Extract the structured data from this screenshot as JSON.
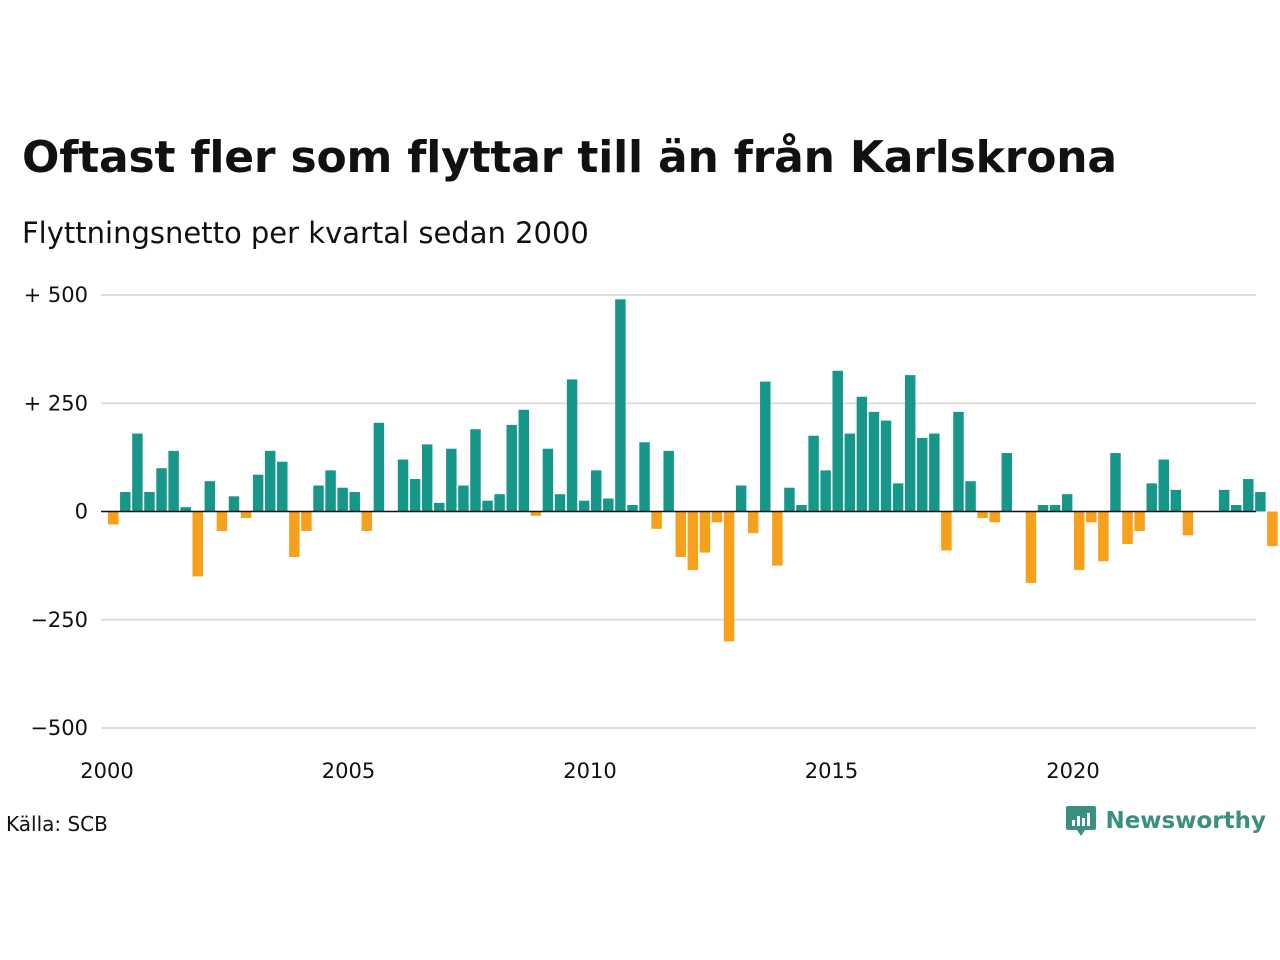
{
  "title": "Oftast fler som flyttar till än från Karlskrona",
  "subtitle": "Flyttningsnetto per kvartal sedan 2000",
  "source": "Källa: SCB",
  "brand": {
    "name": "Newsworthy",
    "icon": "newsworthy-logo-icon"
  },
  "colors": {
    "positive": "#17978a",
    "negative": "#f6a01c",
    "grid": "#dddddd",
    "zero_line": "#111111"
  },
  "chart_data": {
    "type": "bar",
    "title": "Oftast fler som flyttar till än från Karlskrona",
    "subtitle": "Flyttningsnetto per kvartal sedan 2000",
    "xlabel": "",
    "ylabel": "",
    "ylim": [
      -500,
      500
    ],
    "y_ticks": [
      {
        "value": 500,
        "label": "+ 500"
      },
      {
        "value": 250,
        "label": "+ 250"
      },
      {
        "value": 0,
        "label": "0"
      },
      {
        "value": -250,
        "label": "−250"
      },
      {
        "value": -500,
        "label": "−500"
      }
    ],
    "x_ticks": [
      "2000",
      "2005",
      "2010",
      "2015",
      "2020"
    ],
    "grid": true,
    "series": [
      {
        "start": "2000-Q1",
        "frequency": "quarterly",
        "values": [
          -30,
          45,
          180,
          45,
          100,
          140,
          10,
          -150,
          70,
          -45,
          35,
          -15,
          85,
          140,
          115,
          -105,
          -45,
          60,
          95,
          55,
          45,
          -45,
          205,
          0,
          120,
          75,
          155,
          20,
          145,
          60,
          190,
          25,
          40,
          200,
          235,
          -10,
          145,
          40,
          305,
          25,
          95,
          30,
          490,
          15,
          160,
          -40,
          140,
          -105,
          -135,
          -95,
          -25,
          -300,
          60,
          -50,
          300,
          -125,
          55,
          15,
          175,
          95,
          325,
          180,
          265,
          230,
          210,
          65,
          315,
          170,
          180,
          -90,
          230,
          70,
          -15,
          -25,
          135,
          0,
          -165,
          15,
          15,
          40,
          -135,
          -25,
          -115,
          135,
          -75,
          -45,
          65,
          120,
          50,
          -55,
          0,
          0,
          50,
          15,
          75,
          45,
          -80
        ]
      }
    ]
  }
}
